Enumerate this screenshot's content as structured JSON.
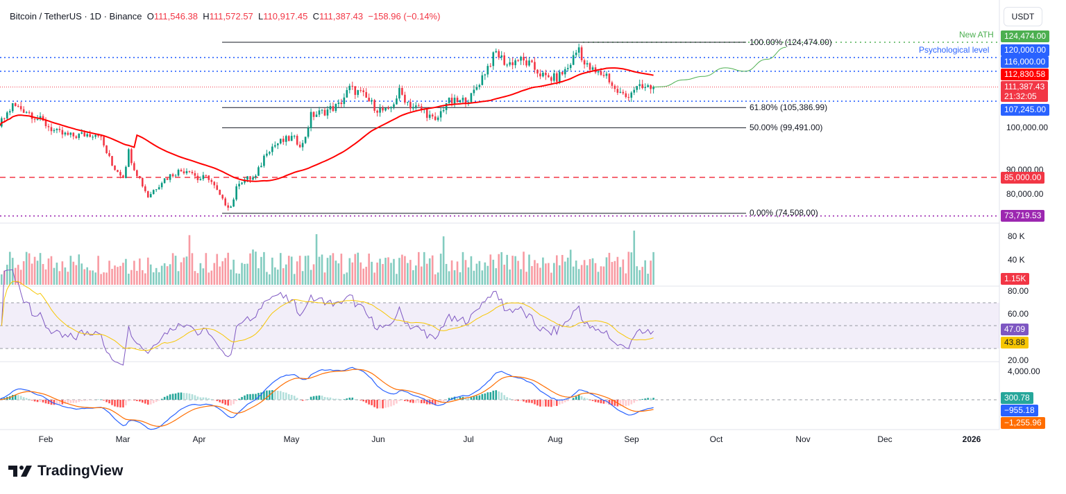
{
  "header": {
    "symbol": "Bitcoin / TetherUS · 1D · Binance",
    "o_label": "O",
    "open": "111,546.38",
    "h_label": "H",
    "high": "111,572.57",
    "l_label": "L",
    "low": "110,917.45",
    "c_label": "C",
    "close": "111,387.43",
    "change": "−158.96 (−0.14%)"
  },
  "currency_button": "USDT",
  "logo_text": "TradingView",
  "price_tags": {
    "ath": "124,474.00",
    "psych": "120,000.00",
    "p116": "116,000.00",
    "ma": "112,830.58",
    "last": "111,387.43",
    "countdown": "21:32:05",
    "p107": "107,245.00",
    "p85": "85,000.00",
    "p73": "73,719.53",
    "volume": "1.15K",
    "rsi": "47.09",
    "rsi_ma": "43.88",
    "macd_hist": "300.78",
    "macd": "−955.18",
    "signal": "−1,255.96"
  },
  "annotations": {
    "ath_label": "New ATH",
    "psych_label": "Psychological level",
    "fib_100": "100.00% (124,474.00)",
    "fib_618": "61.80% (105,386.99)",
    "fib_50": "50.00% (99,491.00)",
    "fib_0": "0.00% (74,508.00)"
  },
  "price_axis": [
    "100,000.00",
    "90,000.00",
    "80,000.00"
  ],
  "volume_axis": [
    "80 K",
    "40 K"
  ],
  "rsi_axis": [
    "80.00",
    "60.00",
    "20.00"
  ],
  "macd_axis": [
    "4,000.00"
  ],
  "x_axis": [
    "Feb",
    "Mar",
    "Apr",
    "May",
    "Jun",
    "Jul",
    "Aug",
    "Sep",
    "Oct",
    "Nov",
    "Dec",
    "2026"
  ],
  "colors": {
    "up": "#089981",
    "down": "#f23645",
    "ma": "#ff0000",
    "blue": "#2962ff",
    "green": "#4caf50",
    "purple": "#9c27b0",
    "rsi": "#7e57c2",
    "rsi_ma": "#f7c600",
    "macd_signal": "#ff6d00"
  },
  "chart_data": {
    "type": "candlestick",
    "title": "Bitcoin / TetherUS 1D Binance",
    "ylim": [
      73000,
      127000
    ],
    "close_keypoints": [
      [
        "01-15",
        100000
      ],
      [
        "01-20",
        106000
      ],
      [
        "01-25",
        104500
      ],
      [
        "02-01",
        100500
      ],
      [
        "02-05",
        98000
      ],
      [
        "02-10",
        97000
      ],
      [
        "02-15",
        97500
      ],
      [
        "02-20",
        98000
      ],
      [
        "02-25",
        88500
      ],
      [
        "03-01",
        85500
      ],
      [
        "03-03",
        92500
      ],
      [
        "03-05",
        88000
      ],
      [
        "03-10",
        79500
      ],
      [
        "03-15",
        84000
      ],
      [
        "03-20",
        86500
      ],
      [
        "03-25",
        87500
      ],
      [
        "03-28",
        84500
      ],
      [
        "04-01",
        85000
      ],
      [
        "04-06",
        78000
      ],
      [
        "04-09",
        76500
      ],
      [
        "04-12",
        84000
      ],
      [
        "04-18",
        85000
      ],
      [
        "04-22",
        93000
      ],
      [
        "04-26",
        95000
      ],
      [
        "05-01",
        96500
      ],
      [
        "05-05",
        94500
      ],
      [
        "05-08",
        103000
      ],
      [
        "05-12",
        104000
      ],
      [
        "05-18",
        106000
      ],
      [
        "05-22",
        111000
      ],
      [
        "05-26",
        109500
      ],
      [
        "06-01",
        105000
      ],
      [
        "06-05",
        104000
      ],
      [
        "06-09",
        110000
      ],
      [
        "06-13",
        106000
      ],
      [
        "06-18",
        104500
      ],
      [
        "06-22",
        101000
      ],
      [
        "06-26",
        107000
      ],
      [
        "07-01",
        107000
      ],
      [
        "07-05",
        108500
      ],
      [
        "07-10",
        116000
      ],
      [
        "07-14",
        121500
      ],
      [
        "07-18",
        118000
      ],
      [
        "07-22",
        119500
      ],
      [
        "07-26",
        118000
      ],
      [
        "08-01",
        114000
      ],
      [
        "08-05",
        114000
      ],
      [
        "08-09",
        117000
      ],
      [
        "08-13",
        123000
      ],
      [
        "08-15",
        118000
      ],
      [
        "08-19",
        115500
      ],
      [
        "08-23",
        115000
      ],
      [
        "08-26",
        110500
      ],
      [
        "08-30",
        108500
      ],
      [
        "09-02",
        111000
      ],
      [
        "09-05",
        111000
      ],
      [
        "09-09",
        111387
      ]
    ],
    "projection": [
      [
        "09-12",
        111500
      ],
      [
        "09-20",
        113500
      ],
      [
        "09-27",
        114500
      ],
      [
        "10-05",
        117000
      ],
      [
        "10-12",
        116000
      ],
      [
        "10-20",
        119500
      ],
      [
        "10-27",
        123000
      ]
    ],
    "horizontal_levels": [
      124474,
      120000,
      116000,
      107245,
      85000,
      73719.53
    ],
    "fib_levels": [
      {
        "ratio": 1.0,
        "price": 124474
      },
      {
        "ratio": 0.618,
        "price": 105386.99
      },
      {
        "ratio": 0.5,
        "price": 99491
      },
      {
        "ratio": 0.0,
        "price": 74508
      }
    ],
    "ma_last": 112830.58,
    "indicators": {
      "volume_last": 1150,
      "rsi": 47.09,
      "rsi_ma": 43.88,
      "rsi_bands": [
        30,
        70
      ],
      "macd_hist": 300.78,
      "macd": -955.18,
      "signal": -1255.96
    }
  }
}
